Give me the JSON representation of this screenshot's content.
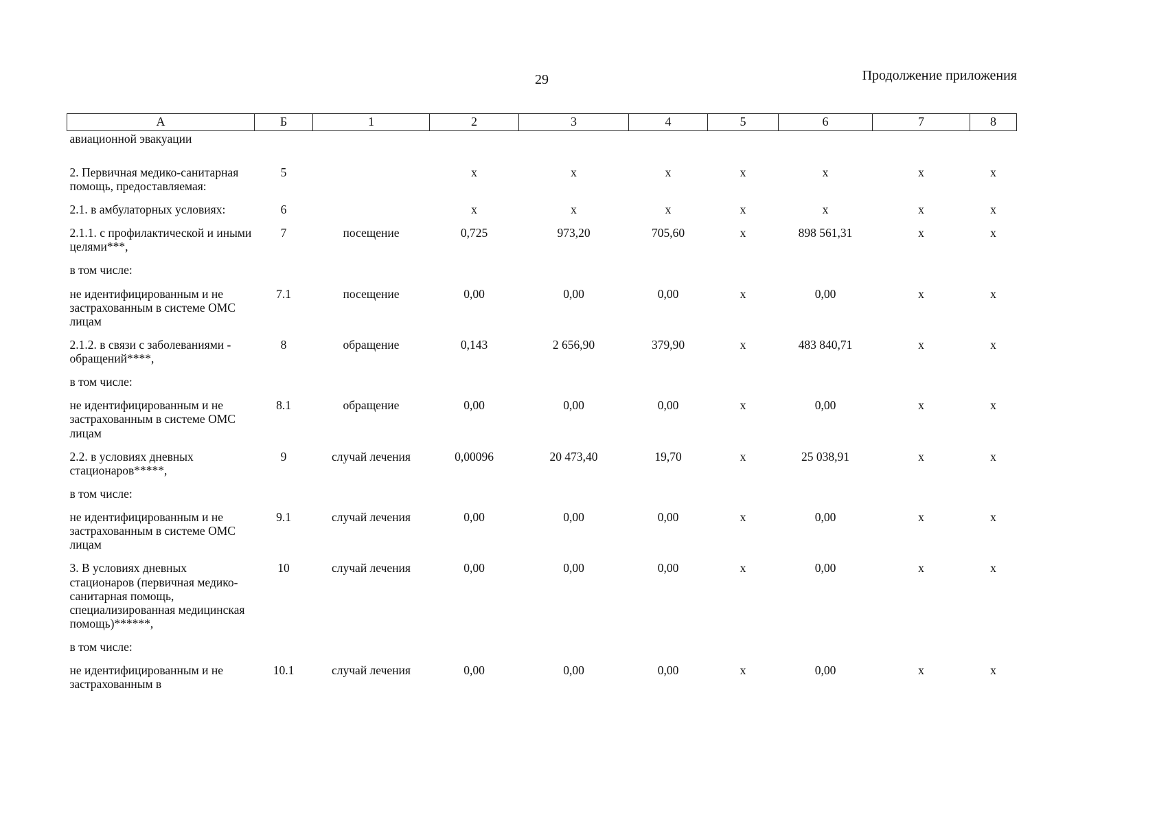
{
  "page": {
    "number": "29",
    "header_right": "Продолжение приложения"
  },
  "table": {
    "columns": [
      "А",
      "Б",
      "1",
      "2",
      "3",
      "4",
      "5",
      "6",
      "7",
      "8"
    ],
    "rows": [
      [
        "авиационной эвакуации",
        "",
        "",
        "",
        "",
        "",
        "",
        "",
        "",
        ""
      ],
      [
        "2. Первичная медико-санитарная помощь, предоставляемая:",
        "5",
        "",
        "х",
        "х",
        "х",
        "х",
        "х",
        "х",
        "х"
      ],
      [
        "2.1. в амбулаторных условиях:",
        "6",
        "",
        "х",
        "х",
        "х",
        "х",
        "х",
        "х",
        "х"
      ],
      [
        "2.1.1. с профилактической и иными целями***,",
        "7",
        "посещение",
        "0,725",
        "973,20",
        "705,60",
        "х",
        "898 561,31",
        "х",
        "х"
      ],
      [
        "в том числе:",
        "",
        "",
        "",
        "",
        "",
        "",
        "",
        "",
        ""
      ],
      [
        "не идентифицированным и не застрахованным в системе ОМС лицам",
        "7.1",
        "посещение",
        "0,00",
        "0,00",
        "0,00",
        "х",
        "0,00",
        "х",
        "х"
      ],
      [
        "2.1.2. в связи с заболеваниями - обращений****,",
        "8",
        "обращение",
        "0,143",
        "2 656,90",
        "379,90",
        "х",
        "483 840,71",
        "х",
        "х"
      ],
      [
        "в том числе:",
        "",
        "",
        "",
        "",
        "",
        "",
        "",
        "",
        ""
      ],
      [
        "не идентифицированным и не застрахованным в системе ОМС лицам",
        "8.1",
        "обращение",
        "0,00",
        "0,00",
        "0,00",
        "х",
        "0,00",
        "х",
        "х"
      ],
      [
        "2.2. в условиях дневных стационаров*****,",
        "9",
        "случай лечения",
        "0,00096",
        "20 473,40",
        "19,70",
        "х",
        "25 038,91",
        "х",
        "х"
      ],
      [
        "в том числе:",
        "",
        "",
        "",
        "",
        "",
        "",
        "",
        "",
        ""
      ],
      [
        "не идентифицированным и не застрахованным в системе ОМС лицам",
        "9.1",
        "случай лечения",
        "0,00",
        "0,00",
        "0,00",
        "х",
        "0,00",
        "х",
        "х"
      ],
      [
        "3. В условиях дневных стационаров (первичная медико-санитарная помощь, специализированная медицинская помощь)******,",
        "10",
        "случай лечения",
        "0,00",
        "0,00",
        "0,00",
        "х",
        "0,00",
        "х",
        "х"
      ],
      [
        "в том числе:",
        "",
        "",
        "",
        "",
        "",
        "",
        "",
        "",
        ""
      ],
      [
        "не идентифицированным и не застрахованным в",
        "10.1",
        "случай лечения",
        "0,00",
        "0,00",
        "0,00",
        "х",
        "0,00",
        "х",
        "х"
      ]
    ]
  }
}
